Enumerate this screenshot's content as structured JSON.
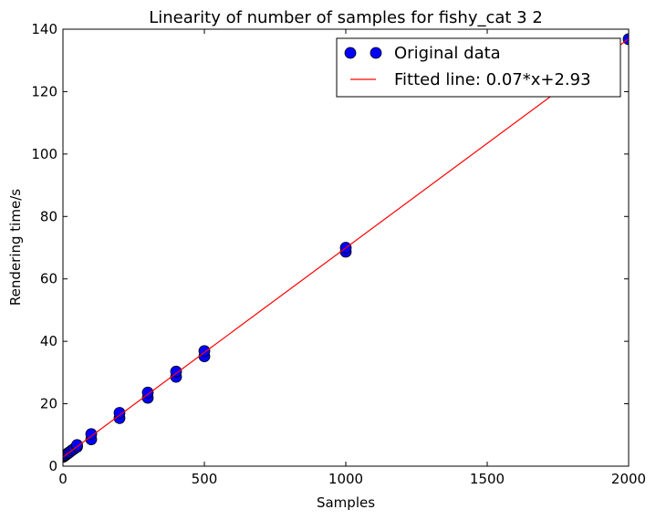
{
  "chart_data": {
    "type": "scatter",
    "title": "Linearity of number of samples for fishy_cat 3 2",
    "xlabel": "Samples",
    "ylabel": "Rendering time/s",
    "xlim": [
      0,
      2000
    ],
    "ylim": [
      0,
      140
    ],
    "xticks": [
      0,
      500,
      1000,
      1500,
      2000
    ],
    "yticks": [
      0,
      20,
      40,
      60,
      80,
      100,
      120,
      140
    ],
    "grid": false,
    "legend_position": "top-right",
    "series": [
      {
        "name": "Original data",
        "kind": "points",
        "color": "#0000ff",
        "points": [
          [
            1,
            3.0
          ],
          [
            2,
            3.1
          ],
          [
            4,
            3.2
          ],
          [
            5,
            3.3
          ],
          [
            8,
            3.5
          ],
          [
            10,
            3.6
          ],
          [
            16,
            4.0
          ],
          [
            20,
            4.3
          ],
          [
            25,
            4.6
          ],
          [
            32,
            5.1
          ],
          [
            40,
            5.6
          ],
          [
            50,
            6.2
          ],
          [
            50,
            6.8
          ],
          [
            100,
            8.6
          ],
          [
            100,
            10.3
          ],
          [
            200,
            15.4
          ],
          [
            200,
            17.1
          ],
          [
            300,
            21.9
          ],
          [
            300,
            23.6
          ],
          [
            400,
            28.6
          ],
          [
            400,
            30.3
          ],
          [
            500,
            35.2
          ],
          [
            500,
            36.9
          ],
          [
            1000,
            68.7
          ],
          [
            1000,
            70.0
          ],
          [
            2000,
            136.8
          ]
        ]
      },
      {
        "name": "Fitted line: 0.07*x+2.93",
        "kind": "line",
        "color": "#ff0000",
        "slope": 0.067,
        "intercept": 2.93,
        "x_range": [
          0,
          2000
        ]
      }
    ]
  }
}
